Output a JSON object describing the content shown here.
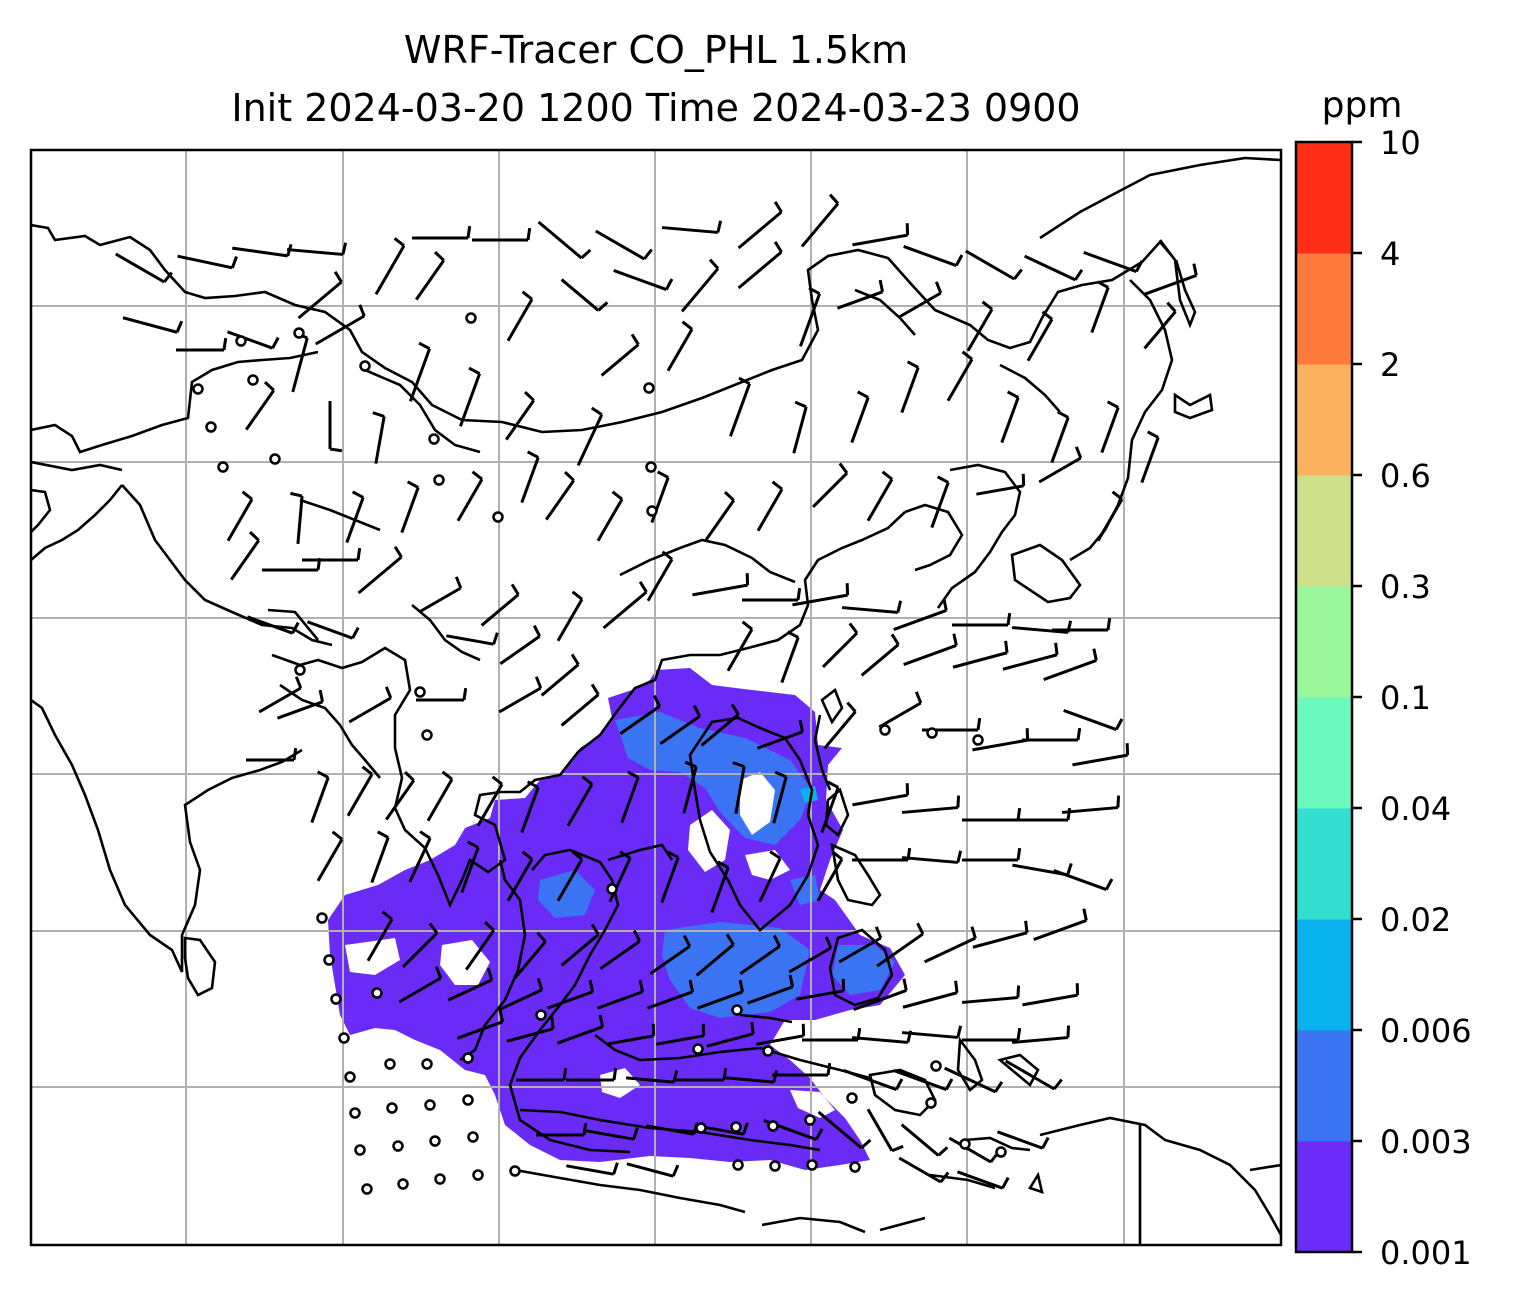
{
  "chart_data": {
    "type": "heatmap",
    "title": "WRF-Tracer CO_PHL 1.5km",
    "subtitle": "Init 2024-03-20 1200 Time 2024-03-23 0900",
    "colorbar": {
      "unit": "ppm",
      "levels": [
        "0.001",
        "0.003",
        "0.006",
        "0.02",
        "0.04",
        "0.1",
        "0.3",
        "0.6",
        "2",
        "4",
        "10"
      ],
      "colors": [
        "#6a2bf7",
        "#3a74f3",
        "#09b2ec",
        "#33ddd0",
        "#6bf9bd",
        "#9bf79b",
        "#cee08a",
        "#fcb15f",
        "#ff7a3c",
        "#ff2e14"
      ]
    },
    "plume_color_low": "#6a2bf7",
    "plume_color_mid": "#3a74f3",
    "plume_color_high": "#09b2ec",
    "grid": true,
    "overlays": [
      "coastlines",
      "country-borders",
      "wind-barbs",
      "calm-circles"
    ]
  }
}
